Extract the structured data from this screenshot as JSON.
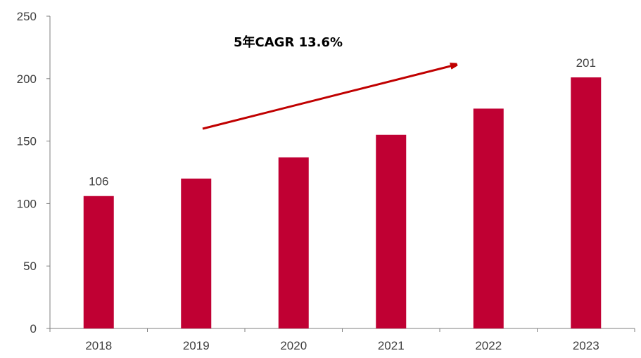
{
  "chart_data": {
    "type": "bar",
    "categories": [
      "2018",
      "2019",
      "2020",
      "2021",
      "2022",
      "2023"
    ],
    "values": [
      106,
      120,
      137,
      155,
      176,
      201
    ],
    "data_labels": {
      "2018": "106",
      "2023": "201"
    },
    "ylim": [
      0,
      250
    ],
    "yticks": [
      "0",
      "50",
      "100",
      "150",
      "200",
      "250"
    ],
    "grid": false,
    "bar_color": "#C00033",
    "annotation": {
      "text": "5年CAGR 13.6%",
      "arrow_color": "#C00000"
    }
  }
}
